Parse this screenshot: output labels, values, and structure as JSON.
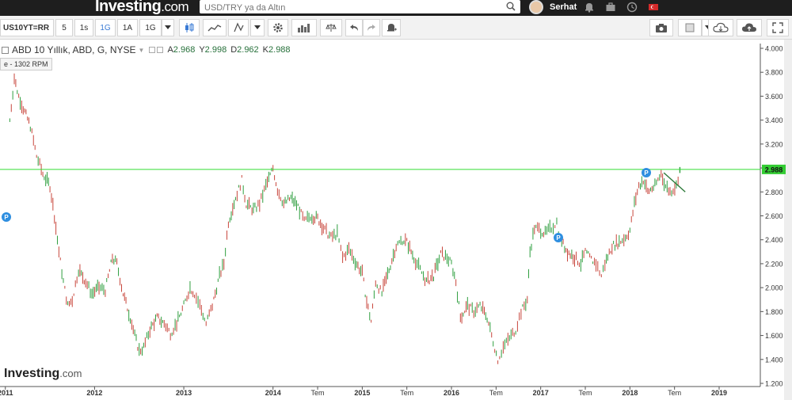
{
  "header": {
    "logo_main": "Investing",
    "logo_suffix": ".com",
    "search_placeholder": "USD/TRY ya da Altın",
    "username": "Serhat"
  },
  "toolbar": {
    "symbol": "US10YT=RR",
    "intervals": [
      "5",
      "1s",
      "1G",
      "1A",
      "1G"
    ],
    "active_interval": "1G"
  },
  "legend": {
    "title": "ABD 10 Yıllık, ABD, G, NYSE",
    "open_label": "A",
    "open": "2.968",
    "high_label": "Y",
    "high": "2.998",
    "low_label": "D",
    "low": "2.962",
    "close_label": "K",
    "close": "2.988"
  },
  "rpm_badge": "e - 1302 RPM",
  "watermark": {
    "main": "Investing",
    "suffix": ".com"
  },
  "colors": {
    "up": "#2e9e3e",
    "down": "#c8463c",
    "current_line": "#33dd33",
    "price_tag": "#33cc33",
    "marker": "#2f8fe0"
  },
  "chart_data": {
    "type": "line",
    "title": "ABD 10 Yıllık, ABD, G, NYSE",
    "xlabel": "",
    "ylabel": "",
    "ylim": [
      1.2,
      4.0
    ],
    "y_ticks": [
      "4.000",
      "3.800",
      "3.600",
      "3.400",
      "3.200",
      "3.000",
      "2.800",
      "2.600",
      "2.400",
      "2.200",
      "2.000",
      "1.800",
      "1.600",
      "1.400",
      "1.200"
    ],
    "x_ticks": [
      {
        "label": "2011",
        "t": 2011.0
      },
      {
        "label": "2012",
        "t": 2012.0
      },
      {
        "label": "2013",
        "t": 2013.0
      },
      {
        "label": "2014",
        "t": 2014.0
      },
      {
        "label": "Tem",
        "t": 2014.5
      },
      {
        "label": "2015",
        "t": 2015.0
      },
      {
        "label": "Tem",
        "t": 2015.5
      },
      {
        "label": "2016",
        "t": 2016.0
      },
      {
        "label": "Tem",
        "t": 2016.5
      },
      {
        "label": "2017",
        "t": 2017.0
      },
      {
        "label": "Tem",
        "t": 2017.5
      },
      {
        "label": "2018",
        "t": 2018.0
      },
      {
        "label": "Tem",
        "t": 2018.5
      },
      {
        "label": "2019",
        "t": 2019.0
      }
    ],
    "current_value": 2.988,
    "current_label": "2.988",
    "series": [
      {
        "points": [
          [
            2011.05,
            3.4
          ],
          [
            2011.1,
            3.75
          ],
          [
            2011.15,
            3.6
          ],
          [
            2011.2,
            3.5
          ],
          [
            2011.28,
            3.35
          ],
          [
            2011.35,
            3.1
          ],
          [
            2011.42,
            2.95
          ],
          [
            2011.5,
            2.85
          ],
          [
            2011.55,
            2.6
          ],
          [
            2011.6,
            2.3
          ],
          [
            2011.65,
            2.05
          ],
          [
            2011.7,
            1.85
          ],
          [
            2011.75,
            1.9
          ],
          [
            2011.82,
            2.15
          ],
          [
            2011.9,
            2.05
          ],
          [
            2011.97,
            1.95
          ],
          [
            2012.05,
            2.0
          ],
          [
            2012.12,
            1.98
          ],
          [
            2012.2,
            2.25
          ],
          [
            2012.25,
            2.2
          ],
          [
            2012.32,
            1.95
          ],
          [
            2012.4,
            1.75
          ],
          [
            2012.45,
            1.6
          ],
          [
            2012.5,
            1.47
          ],
          [
            2012.55,
            1.5
          ],
          [
            2012.62,
            1.65
          ],
          [
            2012.7,
            1.75
          ],
          [
            2012.78,
            1.7
          ],
          [
            2012.85,
            1.62
          ],
          [
            2012.92,
            1.7
          ],
          [
            2013.0,
            1.85
          ],
          [
            2013.07,
            2.0
          ],
          [
            2013.12,
            1.95
          ],
          [
            2013.18,
            1.85
          ],
          [
            2013.25,
            1.7
          ],
          [
            2013.32,
            1.85
          ],
          [
            2013.4,
            2.1
          ],
          [
            2013.45,
            2.2
          ],
          [
            2013.5,
            2.55
          ],
          [
            2013.58,
            2.75
          ],
          [
            2013.65,
            2.9
          ],
          [
            2013.7,
            2.7
          ],
          [
            2013.78,
            2.65
          ],
          [
            2013.85,
            2.7
          ],
          [
            2013.92,
            2.85
          ],
          [
            2014.0,
            3.0
          ],
          [
            2014.05,
            2.82
          ],
          [
            2014.12,
            2.7
          ],
          [
            2014.2,
            2.75
          ],
          [
            2014.28,
            2.68
          ],
          [
            2014.35,
            2.55
          ],
          [
            2014.42,
            2.6
          ],
          [
            2014.5,
            2.58
          ],
          [
            2014.58,
            2.48
          ],
          [
            2014.65,
            2.42
          ],
          [
            2014.72,
            2.45
          ],
          [
            2014.78,
            2.25
          ],
          [
            2014.85,
            2.32
          ],
          [
            2014.92,
            2.22
          ],
          [
            2015.0,
            2.12
          ],
          [
            2015.05,
            1.88
          ],
          [
            2015.1,
            1.72
          ],
          [
            2015.15,
            2.05
          ],
          [
            2015.22,
            1.95
          ],
          [
            2015.3,
            2.15
          ],
          [
            2015.38,
            2.35
          ],
          [
            2015.45,
            2.4
          ],
          [
            2015.5,
            2.38
          ],
          [
            2015.58,
            2.25
          ],
          [
            2015.65,
            2.15
          ],
          [
            2015.72,
            2.05
          ],
          [
            2015.8,
            2.1
          ],
          [
            2015.88,
            2.28
          ],
          [
            2015.95,
            2.25
          ],
          [
            2016.0,
            2.2
          ],
          [
            2016.05,
            2.05
          ],
          [
            2016.1,
            1.75
          ],
          [
            2016.18,
            1.85
          ],
          [
            2016.25,
            1.8
          ],
          [
            2016.32,
            1.85
          ],
          [
            2016.4,
            1.75
          ],
          [
            2016.45,
            1.6
          ],
          [
            2016.52,
            1.4
          ],
          [
            2016.58,
            1.5
          ],
          [
            2016.65,
            1.58
          ],
          [
            2016.72,
            1.65
          ],
          [
            2016.78,
            1.8
          ],
          [
            2016.85,
            1.9
          ],
          [
            2016.88,
            2.3
          ],
          [
            2016.93,
            2.5
          ],
          [
            2017.0,
            2.48
          ],
          [
            2017.05,
            2.45
          ],
          [
            2017.12,
            2.5
          ],
          [
            2017.18,
            2.55
          ],
          [
            2017.22,
            2.4
          ],
          [
            2017.3,
            2.3
          ],
          [
            2017.38,
            2.25
          ],
          [
            2017.45,
            2.2
          ],
          [
            2017.5,
            2.3
          ],
          [
            2017.55,
            2.25
          ],
          [
            2017.62,
            2.2
          ],
          [
            2017.68,
            2.1
          ],
          [
            2017.72,
            2.2
          ],
          [
            2017.8,
            2.35
          ],
          [
            2017.88,
            2.38
          ],
          [
            2017.95,
            2.42
          ],
          [
            2018.0,
            2.48
          ],
          [
            2018.05,
            2.7
          ],
          [
            2018.1,
            2.85
          ],
          [
            2018.15,
            2.9
          ],
          [
            2018.2,
            2.8
          ],
          [
            2018.28,
            2.85
          ],
          [
            2018.35,
            2.95
          ],
          [
            2018.4,
            2.85
          ],
          [
            2018.45,
            2.8
          ],
          [
            2018.52,
            2.85
          ],
          [
            2018.56,
            2.988
          ]
        ]
      }
    ]
  }
}
